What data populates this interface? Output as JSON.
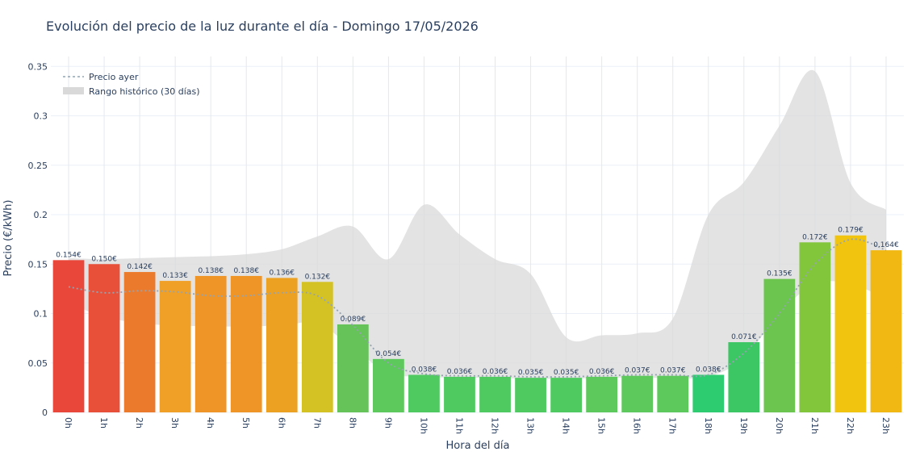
{
  "chart_data": {
    "type": "bar",
    "title": "Evolución del precio de la luz durante el día - Domingo 17/05/2026",
    "xlabel": "Hora del día",
    "ylabel": "Precio (€/kWh)",
    "ylim": [
      0,
      0.36
    ],
    "yticks": [
      0,
      0.05,
      0.1,
      0.15,
      0.2,
      0.25,
      0.3,
      0.35
    ],
    "ytick_labels": [
      "0",
      "0.05",
      "0.1",
      "0.15",
      "0.2",
      "0.25",
      "0.3",
      "0.35"
    ],
    "categories": [
      "0h",
      "1h",
      "2h",
      "3h",
      "4h",
      "5h",
      "6h",
      "7h",
      "8h",
      "9h",
      "10h",
      "11h",
      "12h",
      "13h",
      "14h",
      "15h",
      "16h",
      "17h",
      "18h",
      "19h",
      "20h",
      "21h",
      "22h",
      "23h"
    ],
    "series": [
      {
        "values": [
          0.154,
          0.15,
          0.142,
          0.133,
          0.138,
          0.138,
          0.136,
          0.132,
          0.089,
          0.054,
          0.038,
          0.036,
          0.036,
          0.035,
          0.035,
          0.036,
          0.037,
          0.037,
          0.038,
          0.071,
          0.135,
          0.172,
          0.179,
          0.164
        ],
        "labels": [
          "0.154€",
          "0.150€",
          "0.142€",
          "0.133€",
          "0.138€",
          "0.138€",
          "0.136€",
          "0.132€",
          "0.089€",
          "0.054€",
          "0.038€",
          "0.036€",
          "0.036€",
          "0.035€",
          "0.035€",
          "0.036€",
          "0.037€",
          "0.037€",
          "0.038€",
          "0.071€",
          "0.135€",
          "0.172€",
          "0.179€",
          "0.164€"
        ],
        "colors": [
          "#e8473a",
          "#e8503a",
          "#ec7a2c",
          "#f0a027",
          "#ef9527",
          "#ef9527",
          "#eda122",
          "#d4c225",
          "#66c35a",
          "#5dc85c",
          "#4fca60",
          "#4fca60",
          "#4fca60",
          "#4fca60",
          "#4fca60",
          "#5dc85c",
          "#5dc85c",
          "#5dc85c",
          "#2ecc71",
          "#3dc664",
          "#6cc54f",
          "#82c63c",
          "#f1c40f",
          "#f1b813"
        ]
      },
      {
        "name": "Precio ayer",
        "values": [
          0.127,
          0.121,
          0.123,
          0.122,
          0.118,
          0.118,
          0.121,
          0.118,
          0.088,
          0.05,
          0.039,
          0.037,
          0.037,
          0.036,
          0.036,
          0.037,
          0.038,
          0.038,
          0.038,
          0.06,
          0.1,
          0.15,
          0.175,
          0.164
        ],
        "color": "#94a3b0"
      },
      {
        "name": "Rango histórico (30 días)",
        "upper": [
          0.156,
          0.155,
          0.156,
          0.157,
          0.158,
          0.16,
          0.165,
          0.178,
          0.188,
          0.155,
          0.21,
          0.18,
          0.155,
          0.14,
          0.076,
          0.078,
          0.08,
          0.095,
          0.2,
          0.233,
          0.29,
          0.345,
          0.232,
          0.205
        ],
        "lower": [
          0.11,
          0.097,
          0.09,
          0.088,
          0.087,
          0.087,
          0.088,
          0.09,
          0.065,
          0.04,
          0.036,
          0.035,
          0.035,
          0.034,
          0.034,
          0.035,
          0.035,
          0.035,
          0.036,
          0.055,
          0.1,
          0.13,
          0.13,
          0.115
        ],
        "color": "#d9d9d9"
      }
    ],
    "legend": "top-left",
    "grid": true
  }
}
